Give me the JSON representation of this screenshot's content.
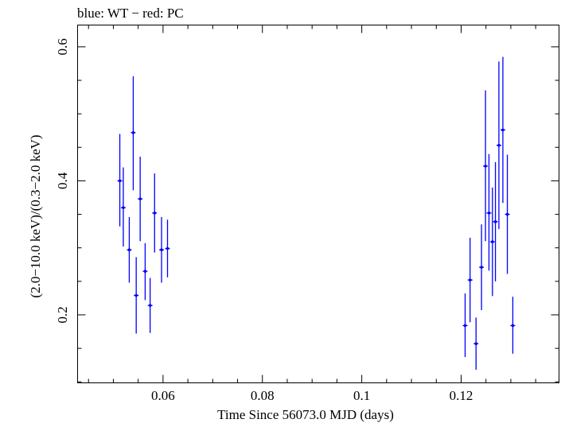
{
  "chart_data": {
    "type": "scatter",
    "title": "blue: WT − red: PC",
    "xlabel": "Time Since 56073.0 MJD (days)",
    "ylabel": "(2.0−10.0 keV)/(0.3−2.0 keV)",
    "xlim": [
      0.0428,
      0.1397
    ],
    "ylim": [
      0.0985,
      0.6325
    ],
    "x_ticks": [
      0.06,
      0.08,
      0.1,
      0.12
    ],
    "x_tick_labels": [
      "0.06",
      "0.08",
      "0.1",
      "0.12"
    ],
    "y_ticks": [
      0.2,
      0.4,
      0.6
    ],
    "y_tick_labels": [
      "0.2",
      "0.4",
      "0.6"
    ],
    "grid": false,
    "series": [
      {
        "color": "#0000ff",
        "points": [
          {
            "x": 0.0513,
            "y": 0.4,
            "ylo": 0.332,
            "yhi": 0.47
          },
          {
            "x": 0.052,
            "y": 0.36,
            "ylo": 0.302,
            "yhi": 0.42
          },
          {
            "x": 0.0532,
            "y": 0.297,
            "ylo": 0.248,
            "yhi": 0.346
          },
          {
            "x": 0.054,
            "y": 0.472,
            "ylo": 0.386,
            "yhi": 0.556
          },
          {
            "x": 0.0546,
            "y": 0.229,
            "ylo": 0.172,
            "yhi": 0.286
          },
          {
            "x": 0.0554,
            "y": 0.373,
            "ylo": 0.31,
            "yhi": 0.436
          },
          {
            "x": 0.0564,
            "y": 0.265,
            "ylo": 0.222,
            "yhi": 0.307
          },
          {
            "x": 0.0574,
            "y": 0.214,
            "ylo": 0.173,
            "yhi": 0.255
          },
          {
            "x": 0.0583,
            "y": 0.352,
            "ylo": 0.293,
            "yhi": 0.411
          },
          {
            "x": 0.0597,
            "y": 0.297,
            "ylo": 0.248,
            "yhi": 0.346
          },
          {
            "x": 0.0609,
            "y": 0.299,
            "ylo": 0.256,
            "yhi": 0.342
          },
          {
            "x": 0.1208,
            "y": 0.184,
            "ylo": 0.137,
            "yhi": 0.232
          },
          {
            "x": 0.1218,
            "y": 0.252,
            "ylo": 0.189,
            "yhi": 0.315
          },
          {
            "x": 0.123,
            "y": 0.157,
            "ylo": 0.118,
            "yhi": 0.196
          },
          {
            "x": 0.1241,
            "y": 0.271,
            "ylo": 0.207,
            "yhi": 0.335
          },
          {
            "x": 0.1249,
            "y": 0.422,
            "ylo": 0.31,
            "yhi": 0.535
          },
          {
            "x": 0.1256,
            "y": 0.352,
            "ylo": 0.266,
            "yhi": 0.44
          },
          {
            "x": 0.1263,
            "y": 0.309,
            "ylo": 0.228,
            "yhi": 0.39
          },
          {
            "x": 0.1269,
            "y": 0.339,
            "ylo": 0.25,
            "yhi": 0.428
          },
          {
            "x": 0.1276,
            "y": 0.453,
            "ylo": 0.328,
            "yhi": 0.578
          },
          {
            "x": 0.1284,
            "y": 0.476,
            "ylo": 0.367,
            "yhi": 0.585
          },
          {
            "x": 0.1293,
            "y": 0.35,
            "ylo": 0.261,
            "yhi": 0.439
          },
          {
            "x": 0.1304,
            "y": 0.184,
            "ylo": 0.142,
            "yhi": 0.227
          }
        ]
      }
    ]
  }
}
